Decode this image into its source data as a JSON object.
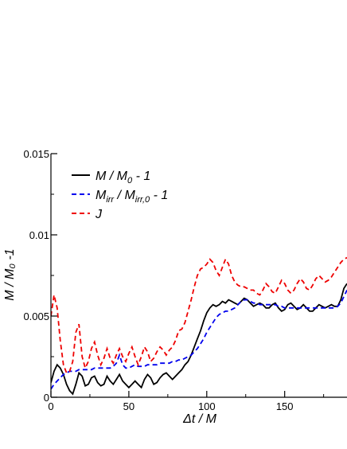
{
  "chart_data": {
    "type": "line",
    "title": "",
    "xlabel": "Δt / M",
    "ylabel": "M / M₀ -1",
    "xlim": [
      0,
      190
    ],
    "ylim": [
      0,
      0.015
    ],
    "xticks": [
      0,
      50,
      100,
      150
    ],
    "xtick_labels": [
      "0",
      "50",
      "100",
      "150"
    ],
    "yticks": [
      0,
      0.005,
      0.01,
      0.015
    ],
    "ytick_labels": [
      "0",
      "0.005",
      "0.01",
      "0.015"
    ],
    "grid": false,
    "legend_position": "top-left",
    "series": [
      {
        "name": "M / M0 - 1",
        "legend_main": "M / M",
        "legend_sub": "0",
        "legend_tail": " - 1",
        "color": "#000000",
        "dash": "solid",
        "x": [
          0,
          2,
          4,
          6,
          8,
          10,
          12,
          14,
          16,
          18,
          20,
          22,
          24,
          26,
          28,
          30,
          32,
          34,
          36,
          38,
          40,
          42,
          44,
          46,
          48,
          50,
          52,
          54,
          56,
          58,
          60,
          62,
          64,
          66,
          68,
          70,
          72,
          74,
          76,
          78,
          80,
          82,
          84,
          86,
          88,
          90,
          92,
          94,
          96,
          98,
          100,
          102,
          104,
          106,
          108,
          110,
          112,
          114,
          116,
          118,
          120,
          122,
          124,
          126,
          128,
          130,
          132,
          134,
          136,
          138,
          140,
          142,
          144,
          146,
          148,
          150,
          152,
          154,
          156,
          158,
          160,
          162,
          164,
          166,
          168,
          170,
          172,
          174,
          176,
          178,
          180,
          182,
          184,
          186,
          188,
          190
        ],
        "y": [
          0.0009,
          0.0016,
          0.002,
          0.0018,
          0.0014,
          0.0008,
          0.0004,
          0.0002,
          0.0008,
          0.0015,
          0.0013,
          0.0007,
          0.0008,
          0.0012,
          0.0013,
          0.0009,
          0.0007,
          0.0008,
          0.0013,
          0.001,
          0.0008,
          0.0011,
          0.0014,
          0.001,
          0.0008,
          0.0006,
          0.0008,
          0.001,
          0.0008,
          0.0006,
          0.0011,
          0.0014,
          0.0012,
          0.0008,
          0.0009,
          0.0012,
          0.0014,
          0.0015,
          0.0013,
          0.0011,
          0.0013,
          0.0015,
          0.0017,
          0.002,
          0.0022,
          0.0026,
          0.0031,
          0.0036,
          0.0041,
          0.0047,
          0.0052,
          0.0055,
          0.0057,
          0.0056,
          0.0057,
          0.0059,
          0.0058,
          0.006,
          0.0059,
          0.0058,
          0.0057,
          0.0059,
          0.0061,
          0.006,
          0.0058,
          0.0056,
          0.0057,
          0.0058,
          0.0057,
          0.0055,
          0.0055,
          0.0057,
          0.0058,
          0.0055,
          0.0053,
          0.0054,
          0.0057,
          0.0058,
          0.0056,
          0.0054,
          0.0055,
          0.0057,
          0.0055,
          0.0053,
          0.0053,
          0.0055,
          0.0057,
          0.0056,
          0.0055,
          0.0056,
          0.0057,
          0.0056,
          0.0056,
          0.006,
          0.0067,
          0.007
        ]
      },
      {
        "name": "Mirr / Mirr,0 - 1",
        "legend_main": "M",
        "legend_sub": "irr",
        "legend_mid": " / M",
        "legend_sub2": "irr,0",
        "legend_tail": " - 1",
        "color": "#0000ee",
        "dash": "dashed",
        "x": [
          0,
          2,
          4,
          6,
          8,
          10,
          12,
          14,
          16,
          18,
          20,
          22,
          24,
          26,
          28,
          30,
          32,
          34,
          36,
          38,
          40,
          42,
          44,
          46,
          48,
          50,
          52,
          54,
          56,
          58,
          60,
          62,
          64,
          66,
          68,
          70,
          72,
          74,
          76,
          78,
          80,
          82,
          84,
          86,
          88,
          90,
          92,
          94,
          96,
          98,
          100,
          102,
          104,
          106,
          108,
          110,
          112,
          114,
          116,
          118,
          120,
          122,
          124,
          126,
          128,
          130,
          132,
          134,
          136,
          138,
          140,
          142,
          144,
          146,
          148,
          150,
          152,
          154,
          156,
          158,
          160,
          162,
          164,
          166,
          168,
          170,
          172,
          174,
          176,
          178,
          180,
          182,
          184,
          186,
          188,
          190
        ],
        "y": [
          0.0005,
          0.0008,
          0.001,
          0.0012,
          0.0014,
          0.0015,
          0.0016,
          0.0016,
          0.0016,
          0.0017,
          0.0017,
          0.0017,
          0.0017,
          0.0017,
          0.0018,
          0.0018,
          0.0018,
          0.0018,
          0.0018,
          0.0018,
          0.0019,
          0.0021,
          0.0026,
          0.002,
          0.0018,
          0.0018,
          0.0019,
          0.002,
          0.0019,
          0.0019,
          0.0019,
          0.002,
          0.002,
          0.002,
          0.002,
          0.0021,
          0.0021,
          0.0021,
          0.0021,
          0.0022,
          0.0022,
          0.0023,
          0.0023,
          0.0024,
          0.0025,
          0.0026,
          0.0028,
          0.003,
          0.0033,
          0.0036,
          0.004,
          0.0043,
          0.0046,
          0.0049,
          0.0051,
          0.0052,
          0.0053,
          0.0053,
          0.0054,
          0.0055,
          0.0057,
          0.0059,
          0.006,
          0.006,
          0.0059,
          0.0058,
          0.0058,
          0.0057,
          0.0057,
          0.0057,
          0.0057,
          0.0057,
          0.0057,
          0.0056,
          0.0056,
          0.0055,
          0.0055,
          0.0055,
          0.0055,
          0.0055,
          0.0055,
          0.0055,
          0.0055,
          0.0055,
          0.0055,
          0.0055,
          0.0055,
          0.0055,
          0.0055,
          0.0055,
          0.0055,
          0.0055,
          0.0056,
          0.0058,
          0.0062,
          0.0066
        ]
      },
      {
        "name": "J",
        "legend_main": "J",
        "color": "#ee0000",
        "dash": "dashed",
        "x": [
          0,
          2,
          4,
          6,
          8,
          10,
          12,
          14,
          16,
          18,
          20,
          22,
          24,
          26,
          28,
          30,
          32,
          34,
          36,
          38,
          40,
          42,
          44,
          46,
          48,
          50,
          52,
          54,
          56,
          58,
          60,
          62,
          64,
          66,
          68,
          70,
          72,
          74,
          76,
          78,
          80,
          82,
          84,
          86,
          88,
          90,
          92,
          94,
          96,
          98,
          100,
          102,
          104,
          106,
          108,
          110,
          112,
          114,
          116,
          118,
          120,
          122,
          124,
          126,
          128,
          130,
          132,
          134,
          136,
          138,
          140,
          142,
          144,
          146,
          148,
          150,
          152,
          154,
          156,
          158,
          160,
          162,
          164,
          166,
          168,
          170,
          172,
          174,
          176,
          178,
          180,
          182,
          184,
          186,
          188,
          190
        ],
        "y": [
          0.005,
          0.0063,
          0.0055,
          0.0035,
          0.002,
          0.0015,
          0.0016,
          0.0022,
          0.004,
          0.0045,
          0.0025,
          0.0018,
          0.0022,
          0.003,
          0.0034,
          0.0026,
          0.002,
          0.0024,
          0.003,
          0.0024,
          0.0021,
          0.0026,
          0.003,
          0.0025,
          0.0022,
          0.0027,
          0.0031,
          0.0025,
          0.002,
          0.0025,
          0.0031,
          0.0028,
          0.0022,
          0.0024,
          0.0028,
          0.0031,
          0.0029,
          0.0026,
          0.0029,
          0.0031,
          0.0035,
          0.0041,
          0.0042,
          0.0046,
          0.0053,
          0.006,
          0.0068,
          0.0075,
          0.0079,
          0.008,
          0.0082,
          0.0085,
          0.0083,
          0.0078,
          0.0075,
          0.008,
          0.0085,
          0.0082,
          0.0075,
          0.0071,
          0.0069,
          0.0068,
          0.0068,
          0.0067,
          0.0066,
          0.0066,
          0.0064,
          0.0063,
          0.0066,
          0.007,
          0.0068,
          0.0065,
          0.0064,
          0.0068,
          0.0072,
          0.007,
          0.0066,
          0.0064,
          0.0066,
          0.007,
          0.0073,
          0.0071,
          0.0067,
          0.0066,
          0.0069,
          0.0073,
          0.0075,
          0.0073,
          0.0071,
          0.0072,
          0.0074,
          0.0077,
          0.008,
          0.0083,
          0.0085,
          0.0086
        ]
      }
    ]
  }
}
